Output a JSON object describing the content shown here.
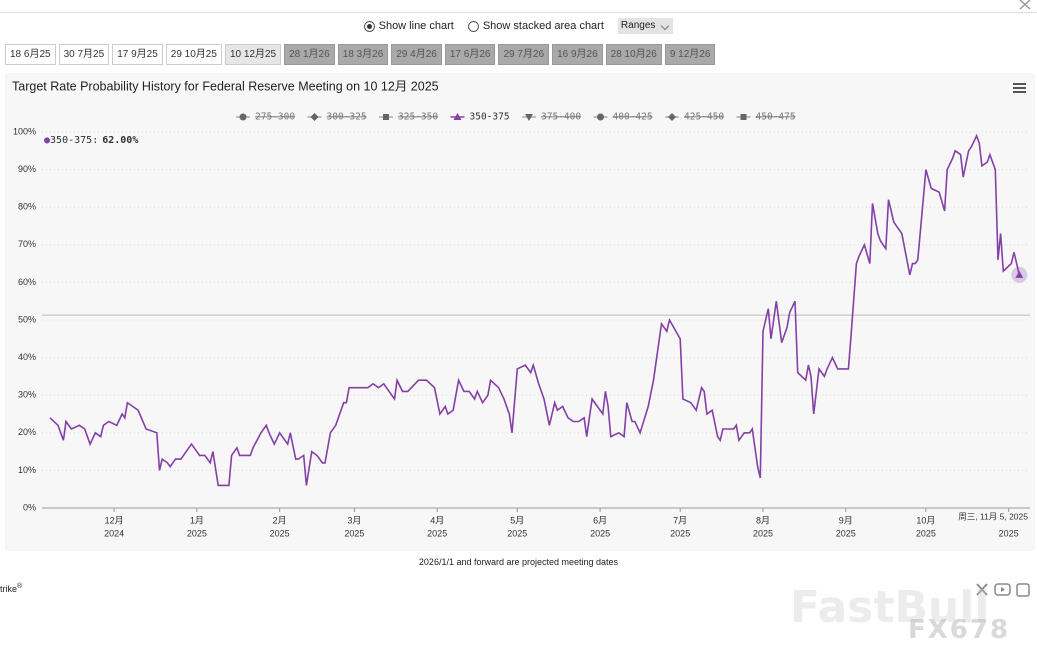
{
  "controls": {
    "options": [
      {
        "label": "Show line chart",
        "selected": true
      },
      {
        "label": "Show stacked area chart",
        "selected": false
      }
    ],
    "ranges": "Ranges"
  },
  "tabs": [
    {
      "label": "18 6月25",
      "state": "normal"
    },
    {
      "label": "30 7月25",
      "state": "normal"
    },
    {
      "label": "17 9月25",
      "state": "normal"
    },
    {
      "label": "29 10月25",
      "state": "normal"
    },
    {
      "label": "10 12月25",
      "state": "active"
    },
    {
      "label": "28 1月26",
      "state": "projected"
    },
    {
      "label": "18 3月26",
      "state": "projected"
    },
    {
      "label": "29 4月26",
      "state": "projected"
    },
    {
      "label": "17 6月26",
      "state": "projected"
    },
    {
      "label": "29 7月26",
      "state": "projected"
    },
    {
      "label": "16 9月26",
      "state": "projected"
    },
    {
      "label": "28 10月26",
      "state": "projected"
    },
    {
      "label": "9 12月26",
      "state": "projected"
    }
  ],
  "chart_data": {
    "type": "line",
    "title": "Target Rate Probability History for Federal Reserve Meeting on 10 12月 2025",
    "x": [
      "2024-11-07",
      "2024-11-10",
      "2024-11-12",
      "2024-11-13",
      "2024-11-15",
      "2024-11-18",
      "2024-11-20",
      "2024-11-22",
      "2024-11-24",
      "2024-11-26",
      "2024-11-27",
      "2024-11-29",
      "2024-12-02",
      "2024-12-04",
      "2024-12-05",
      "2024-12-06",
      "2024-12-08",
      "2024-12-10",
      "2024-12-13",
      "2024-12-17",
      "2024-12-18",
      "2024-12-19",
      "2024-12-21",
      "2024-12-22",
      "2024-12-24",
      "2024-12-26",
      "2024-12-28",
      "2024-12-30",
      "2024-12-31",
      "2025-01-02",
      "2025-01-04",
      "2025-01-06",
      "2025-01-07",
      "2025-01-09",
      "2025-01-13",
      "2025-01-14",
      "2025-01-16",
      "2025-01-17",
      "2025-01-21",
      "2025-01-22",
      "2025-01-25",
      "2025-01-27",
      "2025-01-28",
      "2025-01-30",
      "2025-02-01",
      "2025-02-02",
      "2025-02-04",
      "2025-02-05",
      "2025-02-07",
      "2025-02-08",
      "2025-02-10",
      "2025-02-11",
      "2025-02-13",
      "2025-02-15",
      "2025-02-17",
      "2025-02-18",
      "2025-02-20",
      "2025-02-22",
      "2025-02-25",
      "2025-02-26",
      "2025-02-27",
      "2025-03-03",
      "2025-03-05",
      "2025-03-06",
      "2025-03-08",
      "2025-03-10",
      "2025-03-12",
      "2025-03-14",
      "2025-03-16",
      "2025-03-17",
      "2025-03-19",
      "2025-03-21",
      "2025-03-25",
      "2025-03-28",
      "2025-03-31",
      "2025-04-02",
      "2025-04-04",
      "2025-04-05",
      "2025-04-07",
      "2025-04-09",
      "2025-04-11",
      "2025-04-13",
      "2025-04-15",
      "2025-04-16",
      "2025-04-18",
      "2025-04-20",
      "2025-04-21",
      "2025-04-24",
      "2025-04-26",
      "2025-04-28",
      "2025-04-29",
      "2025-05-01",
      "2025-05-04",
      "2025-05-06",
      "2025-05-07",
      "2025-05-09",
      "2025-05-11",
      "2025-05-13",
      "2025-05-15",
      "2025-05-16",
      "2025-05-18",
      "2025-05-20",
      "2025-05-22",
      "2025-05-24",
      "2025-05-26",
      "2025-05-27",
      "2025-05-29",
      "2025-06-02",
      "2025-06-03",
      "2025-06-04",
      "2025-06-05",
      "2025-06-08",
      "2025-06-10",
      "2025-06-11",
      "2025-06-13",
      "2025-06-14",
      "2025-06-16",
      "2025-06-19",
      "2025-06-21",
      "2025-06-23",
      "2025-06-24",
      "2025-06-26",
      "2025-06-27",
      "2025-07-01",
      "2025-07-02",
      "2025-07-05",
      "2025-07-07",
      "2025-07-09",
      "2025-07-10",
      "2025-07-11",
      "2025-07-13",
      "2025-07-15",
      "2025-07-16",
      "2025-07-17",
      "2025-07-21",
      "2025-07-22",
      "2025-07-23",
      "2025-07-25",
      "2025-07-27",
      "2025-07-28",
      "2025-07-30",
      "2025-07-31",
      "2025-08-01",
      "2025-08-03",
      "2025-08-04",
      "2025-08-06",
      "2025-08-08",
      "2025-08-10",
      "2025-08-11",
      "2025-08-13",
      "2025-08-14",
      "2025-08-17",
      "2025-08-18",
      "2025-08-19",
      "2025-08-20",
      "2025-08-22",
      "2025-08-24",
      "2025-08-25",
      "2025-08-27",
      "2025-08-29",
      "2025-09-02",
      "2025-09-03",
      "2025-09-05",
      "2025-09-06",
      "2025-09-08",
      "2025-09-10",
      "2025-09-11",
      "2025-09-13",
      "2025-09-14",
      "2025-09-16",
      "2025-09-17",
      "2025-09-19",
      "2025-09-21",
      "2025-09-22",
      "2025-09-25",
      "2025-09-26",
      "2025-09-27",
      "2025-09-28",
      "2025-10-01",
      "2025-10-03",
      "2025-10-06",
      "2025-10-08",
      "2025-10-09",
      "2025-10-11",
      "2025-10-12",
      "2025-10-14",
      "2025-10-15",
      "2025-10-17",
      "2025-10-18",
      "2025-10-20",
      "2025-10-21",
      "2025-10-22",
      "2025-10-24",
      "2025-10-25",
      "2025-10-27",
      "2025-10-28",
      "2025-10-29",
      "2025-10-30",
      "2025-11-02",
      "2025-11-03",
      "2025-11-05"
    ],
    "series": [
      {
        "name": "275-300",
        "marker": "circle",
        "hidden": true
      },
      {
        "name": "300-325",
        "marker": "diamond",
        "hidden": true
      },
      {
        "name": "325-350",
        "marker": "square",
        "hidden": true
      },
      {
        "name": "350-375",
        "marker": "triangle",
        "hidden": false,
        "color": "#8440a6",
        "values": [
          24,
          22,
          18,
          23,
          21,
          22,
          21,
          17,
          20,
          19,
          22,
          23,
          22,
          25,
          24,
          28,
          27,
          26,
          21,
          20,
          10,
          13,
          12,
          11,
          13,
          13,
          15,
          17,
          16,
          14,
          14,
          12,
          15,
          6,
          6,
          14,
          16,
          14,
          14,
          16,
          20,
          22,
          20,
          17,
          20,
          19,
          17,
          20,
          13,
          13,
          14,
          6,
          15,
          14,
          12,
          12,
          20,
          22,
          28,
          28,
          32,
          32,
          32,
          32,
          33,
          32,
          33,
          31,
          29,
          34,
          31,
          31,
          34,
          34,
          32,
          25,
          27,
          25,
          26,
          34,
          31,
          31,
          29,
          31,
          28,
          30,
          34,
          32,
          29,
          25,
          20,
          37,
          38,
          36,
          38,
          33,
          29,
          22,
          28,
          26,
          27,
          24,
          23,
          23,
          24,
          19,
          29,
          25,
          31,
          27,
          19,
          20,
          19,
          28,
          23,
          23,
          20,
          27,
          34,
          44,
          49,
          47,
          50,
          45,
          29,
          28,
          26,
          32,
          31,
          25,
          26,
          19,
          18,
          21,
          21,
          22,
          18,
          20,
          20,
          21,
          11,
          8,
          47,
          53,
          45,
          55,
          44,
          48,
          52,
          55,
          36,
          34,
          38,
          35,
          25,
          37,
          35,
          37,
          40,
          37,
          37,
          46,
          65,
          67,
          70,
          65,
          81,
          73,
          71,
          69,
          82,
          76,
          74,
          73,
          62,
          65,
          65,
          66,
          90,
          85,
          84,
          79,
          90,
          93,
          95,
          94,
          88,
          95,
          96,
          99,
          97,
          91,
          92,
          94,
          90,
          66,
          73,
          63,
          65,
          68,
          62
        ]
      },
      {
        "name": "375-400",
        "marker": "triangle-down",
        "hidden": true
      },
      {
        "name": "400-425",
        "marker": "circle",
        "hidden": true
      },
      {
        "name": "425-450",
        "marker": "diamond",
        "hidden": true
      },
      {
        "name": "450-475",
        "marker": "square",
        "hidden": true
      }
    ],
    "xlim": [
      "2024-11-04",
      "2025-11-09"
    ],
    "xticks": [
      {
        "value": "2024-12-01",
        "label": "12月",
        "sublabel": "2024"
      },
      {
        "value": "2025-01-01",
        "label": "1月",
        "sublabel": "2025"
      },
      {
        "value": "2025-02-01",
        "label": "2月",
        "sublabel": "2025"
      },
      {
        "value": "2025-03-01",
        "label": "3月",
        "sublabel": "2025"
      },
      {
        "value": "2025-04-01",
        "label": "4月",
        "sublabel": "2025"
      },
      {
        "value": "2025-05-01",
        "label": "5月",
        "sublabel": "2025"
      },
      {
        "value": "2025-06-01",
        "label": "6月",
        "sublabel": "2025"
      },
      {
        "value": "2025-07-01",
        "label": "7月",
        "sublabel": "2025"
      },
      {
        "value": "2025-08-01",
        "label": "8月",
        "sublabel": "2025"
      },
      {
        "value": "2025-09-01",
        "label": "9月",
        "sublabel": "2025"
      },
      {
        "value": "2025-10-01",
        "label": "10月",
        "sublabel": "2025"
      },
      {
        "value": "2025-11-01",
        "label": "",
        "sublabel": "2025"
      }
    ],
    "ylim": [
      0,
      100
    ],
    "yticks": [
      {
        "value": 0,
        "label": "0%"
      },
      {
        "value": 10,
        "label": "10%"
      },
      {
        "value": 20,
        "label": "20%"
      },
      {
        "value": 30,
        "label": "30%"
      },
      {
        "value": 40,
        "label": "40%"
      },
      {
        "value": 50,
        "label": "50%"
      },
      {
        "value": 60,
        "label": "60%"
      },
      {
        "value": 70,
        "label": "70%"
      },
      {
        "value": 80,
        "label": "80%"
      },
      {
        "value": 90,
        "label": "90%"
      },
      {
        "value": 100,
        "label": "100%"
      }
    ],
    "grid": true,
    "tooltip": {
      "series": 3,
      "value_label": "62.00%",
      "date_label": "周三, 11月 5, 2025"
    }
  },
  "footnote": "2026/1/1 and forward are projected meeting dates",
  "footer_left": "trike",
  "watermarks": [
    "FastBull",
    "FX678"
  ]
}
